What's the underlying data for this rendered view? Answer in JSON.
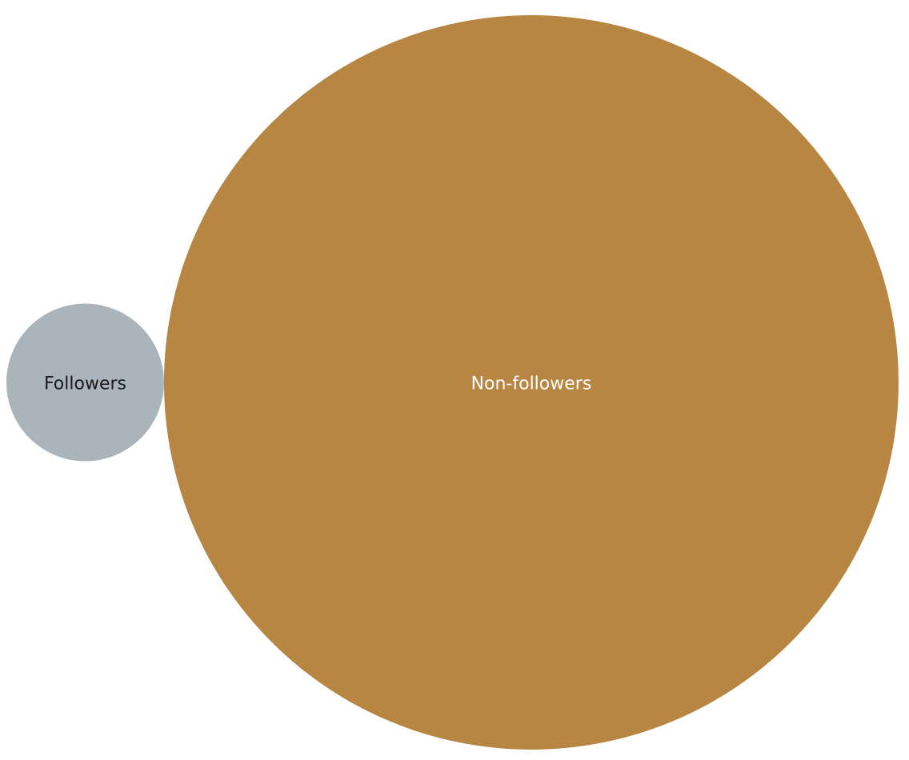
{
  "chart_data": {
    "type": "bubble",
    "title": "",
    "categories": [
      "Followers",
      "Non-followers"
    ],
    "values": [
      4.4,
      95.6
    ],
    "colors": [
      "#a9b4bb",
      "#b78642"
    ],
    "label_colors": [
      "#1a1a1a",
      "#ffffff"
    ],
    "legend": "none",
    "grid": false
  }
}
